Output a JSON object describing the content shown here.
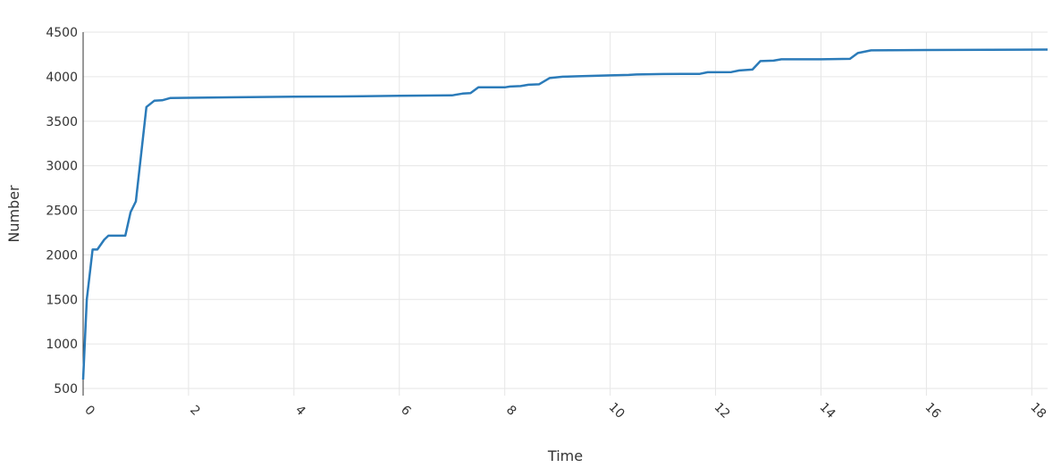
{
  "chart_data": {
    "type": "line",
    "title": "",
    "xlabel": "Time",
    "ylabel": "Number",
    "xlim": [
      0,
      18.3
    ],
    "ylim": [
      420,
      4500
    ],
    "x_ticks": [
      0,
      2,
      4,
      6,
      8,
      10,
      12,
      14,
      16,
      18
    ],
    "y_ticks": [
      500,
      1000,
      1500,
      2000,
      2500,
      3000,
      3500,
      4000,
      4500
    ],
    "grid": true,
    "legend": "none",
    "line_color": "#2b7bb9",
    "series": [
      {
        "x": [
          0,
          0.07,
          0.18,
          0.27,
          0.4,
          0.48,
          0.8,
          0.9,
          1.0,
          1.2,
          1.35,
          1.5,
          1.65,
          2.0,
          4.0,
          5.3,
          6.0,
          7.0,
          7.2,
          7.35,
          7.5,
          8.0,
          8.1,
          8.3,
          8.45,
          8.65,
          8.85,
          9.1,
          9.4,
          9.7,
          10.0,
          10.35,
          10.5,
          11.0,
          11.7,
          11.85,
          12.3,
          12.45,
          12.7,
          12.85,
          13.1,
          13.25,
          14.0,
          14.55,
          14.7,
          14.95,
          16.0,
          18.3
        ],
        "y": [
          600,
          1500,
          2060,
          2060,
          2170,
          2215,
          2215,
          2480,
          2600,
          3660,
          3730,
          3735,
          3760,
          3763,
          3775,
          3780,
          3785,
          3790,
          3810,
          3815,
          3880,
          3880,
          3890,
          3895,
          3910,
          3915,
          3985,
          4000,
          4005,
          4010,
          4015,
          4020,
          4025,
          4030,
          4032,
          4050,
          4052,
          4070,
          4080,
          4175,
          4180,
          4195,
          4195,
          4200,
          4265,
          4295,
          4300,
          4305
        ]
      }
    ]
  }
}
